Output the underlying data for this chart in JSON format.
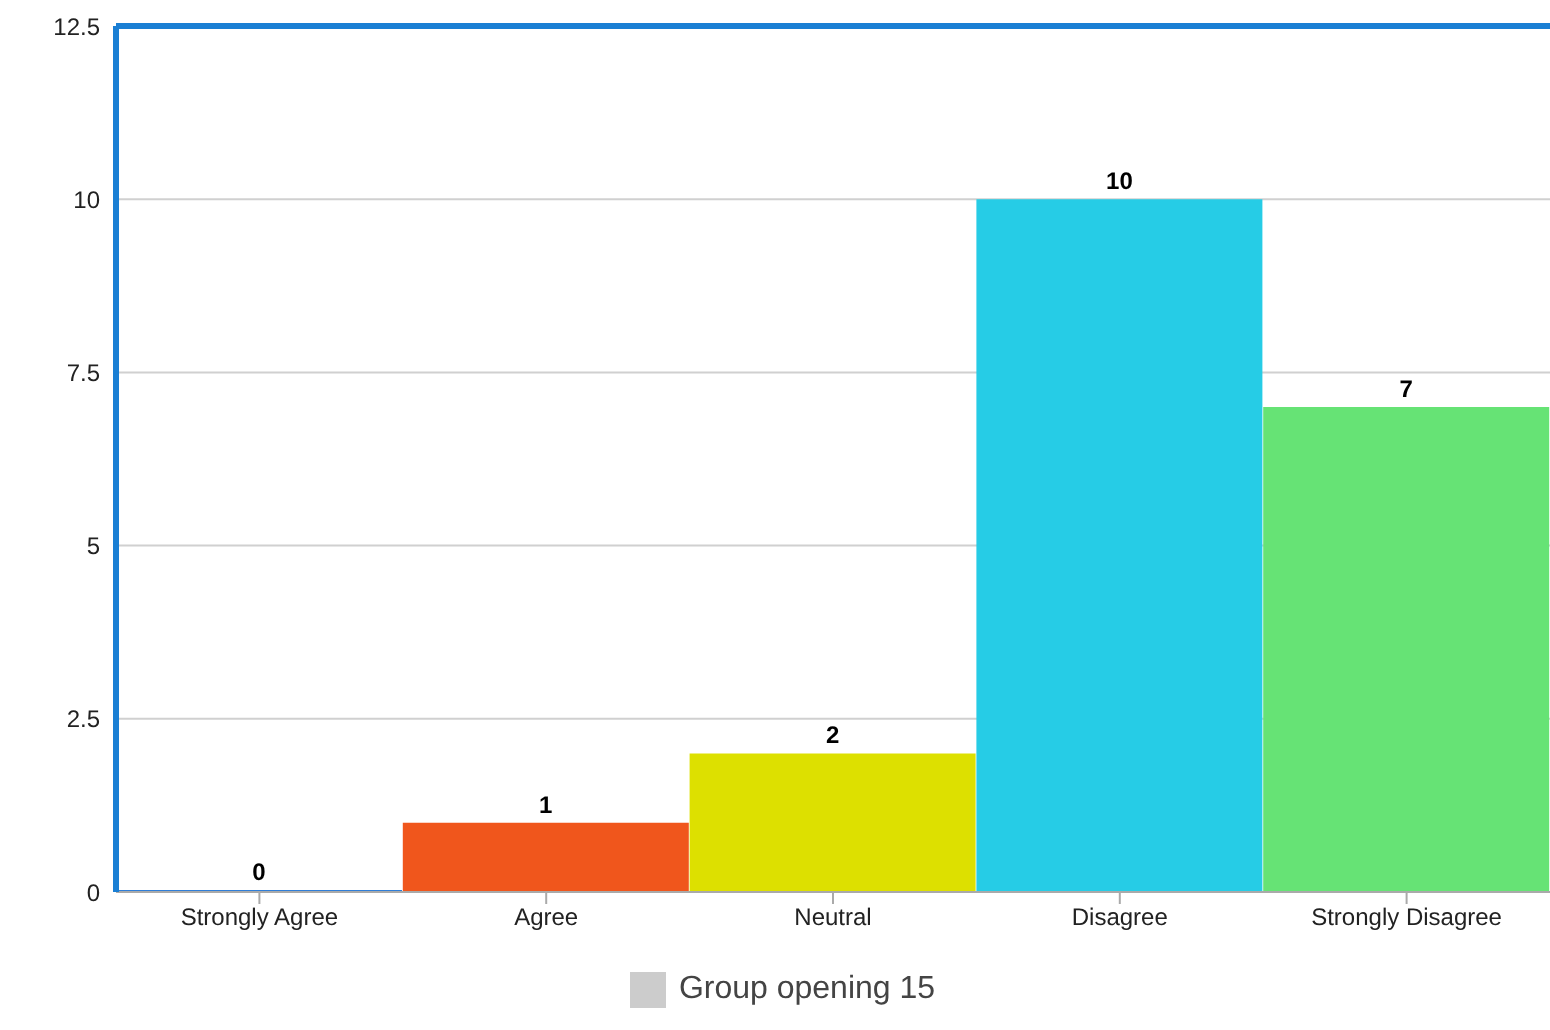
{
  "chart_data": {
    "type": "bar",
    "categories": [
      "Strongly Agree",
      "Agree",
      "Neutral",
      "Disagree",
      "Strongly Disagree"
    ],
    "series": [
      {
        "name": "Group opening 15",
        "color": "#cccccc",
        "colors": [
          "#2f7ed8",
          "#f0561c",
          "#dde000",
          "#26cce6",
          "#66e375"
        ],
        "values": [
          0,
          1,
          2,
          10,
          7
        ]
      }
    ],
    "ylim": [
      0,
      12.5
    ],
    "yticks": [
      0,
      2.5,
      5,
      7.5,
      10,
      12.5
    ],
    "grid": "y",
    "legend": "bottom",
    "data_labels": true
  }
}
